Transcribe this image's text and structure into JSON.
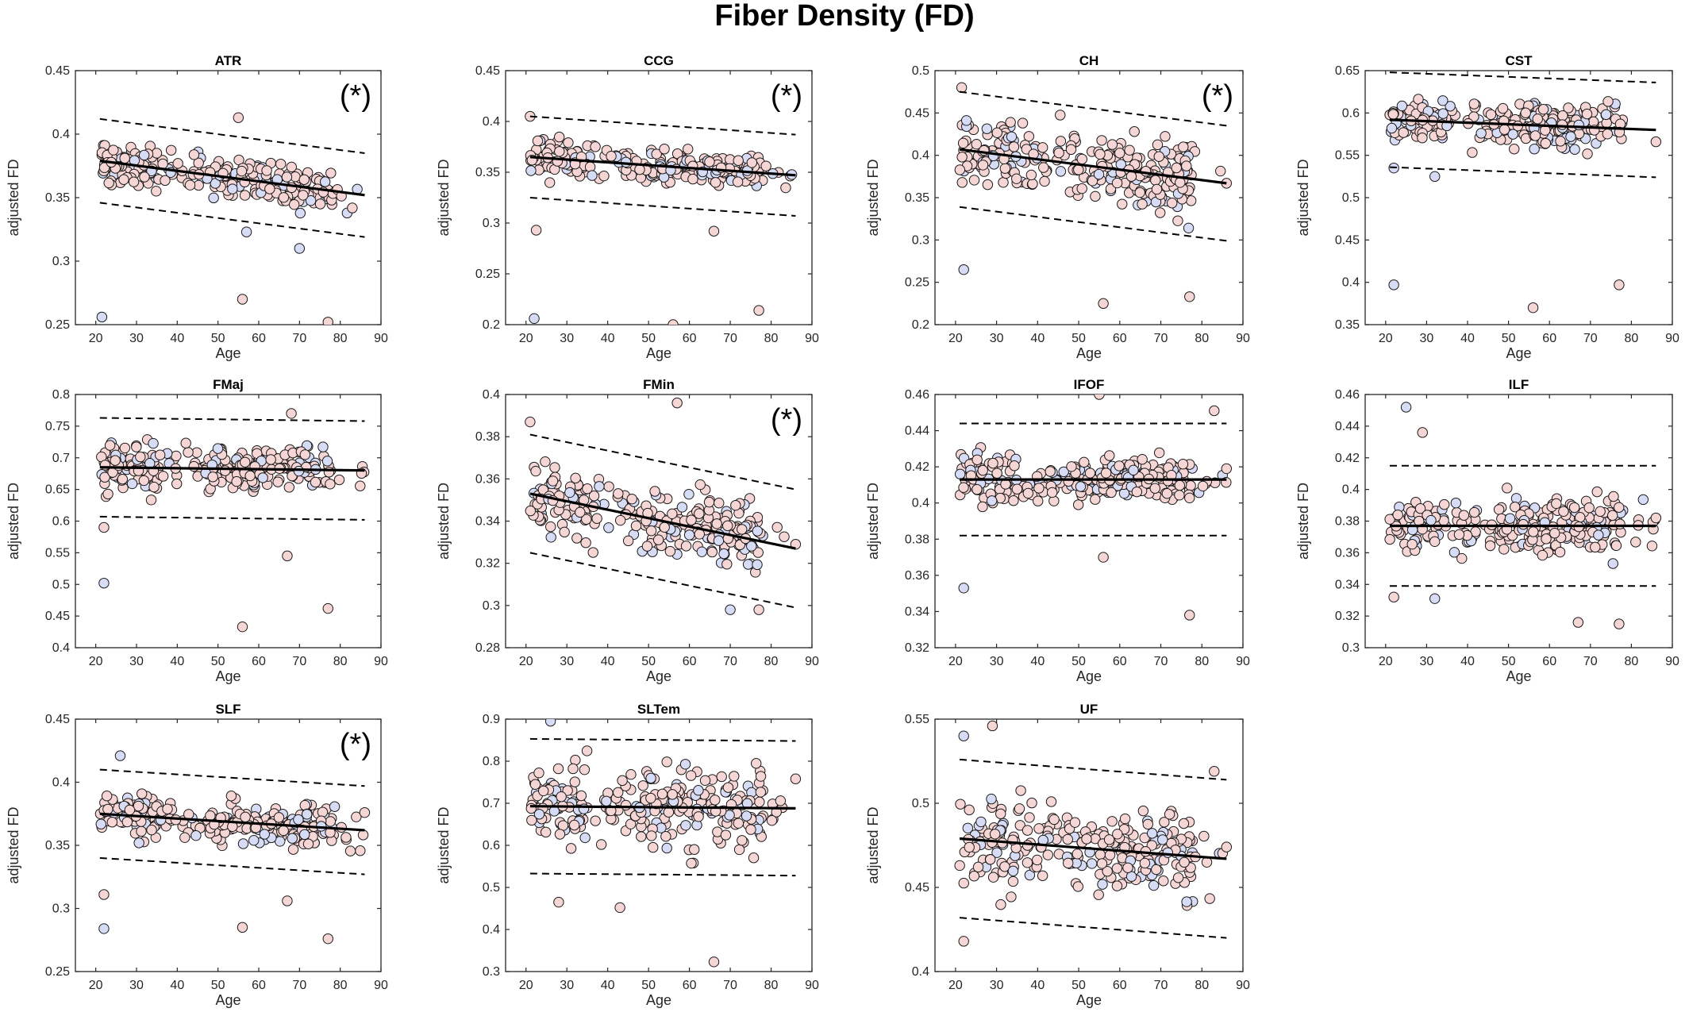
{
  "figure": {
    "title": "Fiber Density (FD)",
    "colors": {
      "female": "#f6d5d5",
      "male": "#d6dcf5",
      "edge": "#1a1a1a",
      "line": "#000000"
    },
    "common": {
      "xlabel": "Age",
      "ylabel": "adjusted FD",
      "xlim": [
        15,
        90
      ],
      "xticks": [
        20,
        30,
        40,
        50,
        60,
        70,
        80,
        90
      ]
    }
  },
  "chart_data": [
    {
      "title": "ATR",
      "type": "scatter",
      "significant": true,
      "annotation": "(*)",
      "ylim": [
        0.25,
        0.45
      ],
      "yticks": [
        "0.25",
        "0.3",
        "0.35",
        "0.4",
        "0.45"
      ],
      "fit": [
        0.379,
        0.352
      ],
      "band": 0.033,
      "center": 0.366,
      "spread": 0.013,
      "outliers": [
        [
          21.5,
          0.256,
          "m"
        ],
        [
          56,
          0.27,
          "f"
        ],
        [
          77,
          0.252,
          "f"
        ],
        [
          70,
          0.31,
          "m"
        ],
        [
          55,
          0.413,
          "f"
        ],
        [
          57,
          0.323,
          "m"
        ]
      ]
    },
    {
      "title": "CCG",
      "type": "scatter",
      "significant": true,
      "annotation": "(*)",
      "ylim": [
        0.2,
        0.45
      ],
      "yticks": [
        "0.2",
        "0.25",
        "0.3",
        "0.35",
        "0.4",
        "0.45"
      ],
      "fit": [
        0.365,
        0.347
      ],
      "band": 0.04,
      "center": 0.356,
      "spread": 0.013,
      "outliers": [
        [
          22,
          0.206,
          "m"
        ],
        [
          22.5,
          0.293,
          "f"
        ],
        [
          56,
          0.2,
          "f"
        ],
        [
          66,
          0.292,
          "f"
        ],
        [
          77,
          0.214,
          "f"
        ],
        [
          21,
          0.405,
          "f"
        ]
      ]
    },
    {
      "title": "CH",
      "type": "scatter",
      "significant": true,
      "annotation": "(*)",
      "ylim": [
        0.2,
        0.5
      ],
      "yticks": [
        "0.2",
        "0.25",
        "0.3",
        "0.35",
        "0.4",
        "0.45",
        "0.5"
      ],
      "fit": [
        0.407,
        0.367
      ],
      "band": 0.068,
      "center": 0.388,
      "spread": 0.032,
      "outliers": [
        [
          22,
          0.265,
          "m"
        ],
        [
          56,
          0.225,
          "f"
        ],
        [
          77,
          0.233,
          "f"
        ],
        [
          21.5,
          0.48,
          "f"
        ],
        [
          86,
          0.367,
          "f"
        ]
      ]
    },
    {
      "title": "CST",
      "type": "scatter",
      "significant": false,
      "annotation": "",
      "ylim": [
        0.35,
        0.65
      ],
      "yticks": [
        "0.35",
        "0.4",
        "0.45",
        "0.5",
        "0.55",
        "0.6",
        "0.65"
      ],
      "fit": [
        0.592,
        0.58
      ],
      "band": 0.056,
      "center": 0.587,
      "spread": 0.02,
      "outliers": [
        [
          22,
          0.397,
          "m"
        ],
        [
          56,
          0.37,
          "f"
        ],
        [
          77,
          0.397,
          "f"
        ],
        [
          22,
          0.535,
          "m"
        ],
        [
          32,
          0.525,
          "m"
        ],
        [
          86,
          0.566,
          "f"
        ]
      ]
    },
    {
      "title": "FMaj",
      "type": "scatter",
      "significant": false,
      "annotation": "",
      "ylim": [
        0.4,
        0.8
      ],
      "yticks": [
        "0.4",
        "0.45",
        "0.5",
        "0.55",
        "0.6",
        "0.65",
        "0.7",
        "0.75",
        "0.8"
      ],
      "fit": [
        0.685,
        0.68
      ],
      "band": 0.078,
      "center": 0.683,
      "spread": 0.03,
      "outliers": [
        [
          22,
          0.502,
          "m"
        ],
        [
          56,
          0.433,
          "f"
        ],
        [
          67,
          0.545,
          "f"
        ],
        [
          77,
          0.462,
          "f"
        ],
        [
          22,
          0.59,
          "f"
        ],
        [
          68,
          0.77,
          "f"
        ]
      ]
    },
    {
      "title": "FMin",
      "type": "scatter",
      "significant": true,
      "annotation": "(*)",
      "ylim": [
        0.28,
        0.4
      ],
      "yticks": [
        "0.28",
        "0.3",
        "0.32",
        "0.34",
        "0.36",
        "0.38",
        "0.4"
      ],
      "fit": [
        0.353,
        0.327
      ],
      "band": 0.028,
      "center": 0.34,
      "spread": 0.012,
      "outliers": [
        [
          57,
          0.396,
          "f"
        ],
        [
          70,
          0.298,
          "m"
        ],
        [
          77,
          0.298,
          "f"
        ],
        [
          21,
          0.387,
          "f"
        ],
        [
          86,
          0.329,
          "f"
        ]
      ]
    },
    {
      "title": "IFOF",
      "type": "scatter",
      "significant": false,
      "annotation": "",
      "ylim": [
        0.32,
        0.46
      ],
      "yticks": [
        "0.32",
        "0.34",
        "0.36",
        "0.38",
        "0.4",
        "0.42",
        "0.44",
        "0.46"
      ],
      "fit": [
        0.413,
        0.413
      ],
      "band": 0.031,
      "center": 0.413,
      "spread": 0.011,
      "outliers": [
        [
          22,
          0.353,
          "m"
        ],
        [
          56,
          0.37,
          "f"
        ],
        [
          77,
          0.338,
          "f"
        ],
        [
          55,
          0.46,
          "f"
        ],
        [
          83,
          0.451,
          "f"
        ],
        [
          86,
          0.419,
          "f"
        ]
      ]
    },
    {
      "title": "ILF",
      "type": "scatter",
      "significant": false,
      "annotation": "",
      "ylim": [
        0.3,
        0.46
      ],
      "yticks": [
        "0.3",
        "0.32",
        "0.34",
        "0.36",
        "0.38",
        "0.4",
        "0.42",
        "0.44",
        "0.46"
      ],
      "fit": [
        0.377,
        0.377
      ],
      "band": 0.038,
      "center": 0.377,
      "spread": 0.014,
      "outliers": [
        [
          25,
          0.452,
          "m"
        ],
        [
          29,
          0.436,
          "f"
        ],
        [
          67,
          0.316,
          "f"
        ],
        [
          77,
          0.315,
          "f"
        ],
        [
          22,
          0.332,
          "f"
        ],
        [
          32,
          0.331,
          "m"
        ],
        [
          86,
          0.382,
          "f"
        ]
      ]
    },
    {
      "title": "SLF",
      "type": "scatter",
      "significant": true,
      "annotation": "(*)",
      "ylim": [
        0.25,
        0.45
      ],
      "yticks": [
        "0.25",
        "0.3",
        "0.35",
        "0.4",
        "0.45"
      ],
      "fit": [
        0.375,
        0.362
      ],
      "band": 0.035,
      "center": 0.368,
      "spread": 0.013,
      "outliers": [
        [
          22,
          0.284,
          "m"
        ],
        [
          22,
          0.311,
          "f"
        ],
        [
          56,
          0.285,
          "f"
        ],
        [
          67,
          0.306,
          "f"
        ],
        [
          77,
          0.276,
          "f"
        ],
        [
          26,
          0.421,
          "m"
        ],
        [
          86,
          0.376,
          "f"
        ]
      ]
    },
    {
      "title": "SLTem",
      "type": "scatter",
      "significant": false,
      "annotation": "",
      "ylim": [
        0.3,
        0.9
      ],
      "yticks": [
        "0.3",
        "0.4",
        "0.5",
        "0.6",
        "0.7",
        "0.8",
        "0.9"
      ],
      "fit": [
        0.693,
        0.688
      ],
      "band": 0.16,
      "center": 0.69,
      "spread": 0.075,
      "outliers": [
        [
          26,
          0.895,
          "m"
        ],
        [
          66,
          0.323,
          "f"
        ],
        [
          43,
          0.452,
          "f"
        ],
        [
          28,
          0.465,
          "f"
        ],
        [
          86,
          0.758,
          "f"
        ]
      ]
    },
    {
      "title": "UF",
      "type": "scatter",
      "significant": false,
      "annotation": "",
      "ylim": [
        0.4,
        0.55
      ],
      "yticks": [
        "0.4",
        "0.45",
        "0.5",
        "0.55"
      ],
      "fit": [
        0.479,
        0.467
      ],
      "band": 0.047,
      "center": 0.473,
      "spread": 0.02,
      "outliers": [
        [
          22,
          0.418,
          "f"
        ],
        [
          22,
          0.54,
          "m"
        ],
        [
          29,
          0.546,
          "f"
        ],
        [
          83,
          0.519,
          "f"
        ],
        [
          86,
          0.474,
          "f"
        ]
      ]
    }
  ]
}
